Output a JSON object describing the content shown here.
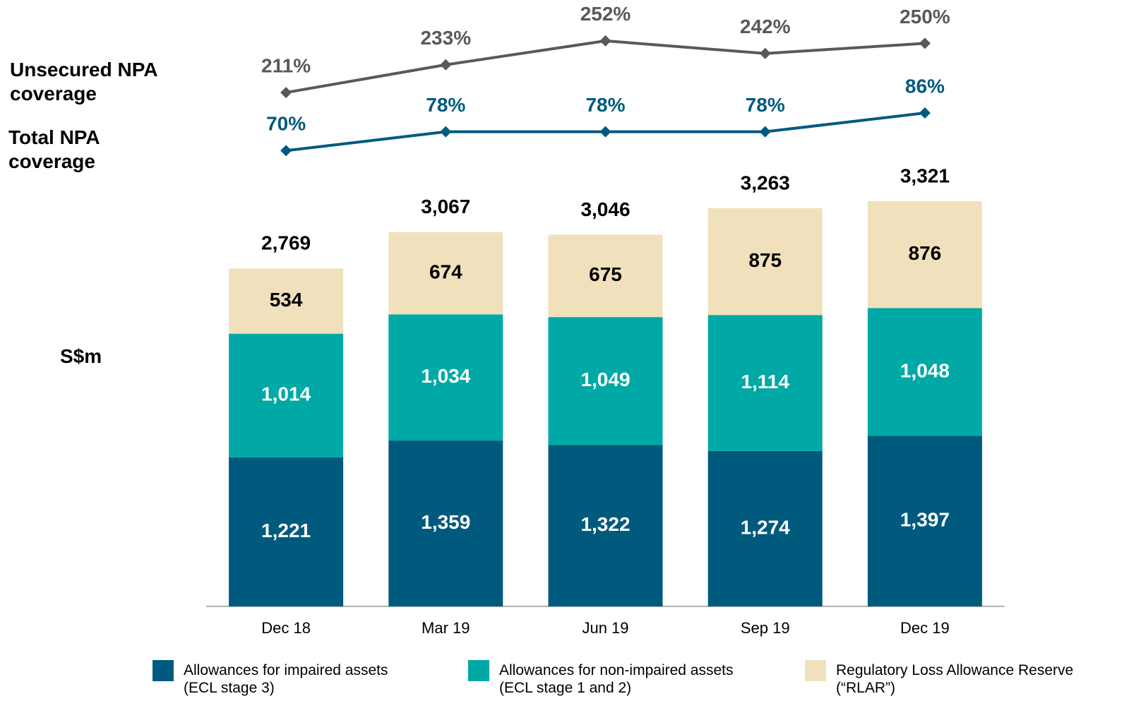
{
  "chart_data": [
    {
      "type": "line",
      "series": [
        {
          "name": "Unsecured NPA\ncoverage",
          "color": "#595959",
          "values": [
            211,
            233,
            252,
            242,
            250
          ],
          "value_labels": [
            "211%",
            "233%",
            "252%",
            "242%",
            "250%"
          ]
        },
        {
          "name": "Total NPA\ncoverage",
          "color": "#005a7e",
          "axis": "y2",
          "values": [
            70,
            78,
            78,
            78,
            86
          ],
          "value_labels": [
            "70%",
            "78%",
            "78%",
            "78%",
            "86%"
          ]
        }
      ],
      "ylim": [
        150,
        262
      ],
      "y2lim": [
        62,
        122
      ]
    },
    {
      "type": "bar",
      "stacked": true,
      "ylabel": "S$m",
      "categories": [
        "Dec 18",
        "Mar 19",
        "Jun 19",
        "Sep 19",
        "Dec 19"
      ],
      "series": [
        {
          "name": "Allowances for impaired assets\n(ECL stage 3)",
          "color": "#005a7e",
          "label_color": "#ffffff",
          "values": [
            1221,
            1359,
            1322,
            1274,
            1397
          ],
          "value_labels": [
            "1,221",
            "1,359",
            "1,322",
            "1,274",
            "1,397"
          ]
        },
        {
          "name": "Allowances for non-impaired assets\n(ECL stage 1 and 2)",
          "color": "#00a9a5",
          "label_color": "#ffffff",
          "values": [
            1014,
            1034,
            1049,
            1114,
            1048
          ],
          "value_labels": [
            "1,014",
            "1,034",
            "1,049",
            "1,114",
            "1,048"
          ]
        },
        {
          "name": "Regulatory Loss Allowance Reserve\n(“RLAR”)",
          "color": "#f0e0bc",
          "label_color": "#000000",
          "values": [
            534,
            674,
            675,
            875,
            876
          ],
          "value_labels": [
            "534",
            "674",
            "675",
            "875",
            "876"
          ]
        }
      ],
      "totals": {
        "values": [
          2769,
          3067,
          3046,
          3263,
          3321
        ],
        "value_labels": [
          "2,769",
          "3,067",
          "3,046",
          "3,263",
          "3,321"
        ]
      },
      "ylim": [
        0,
        3500
      ]
    }
  ]
}
